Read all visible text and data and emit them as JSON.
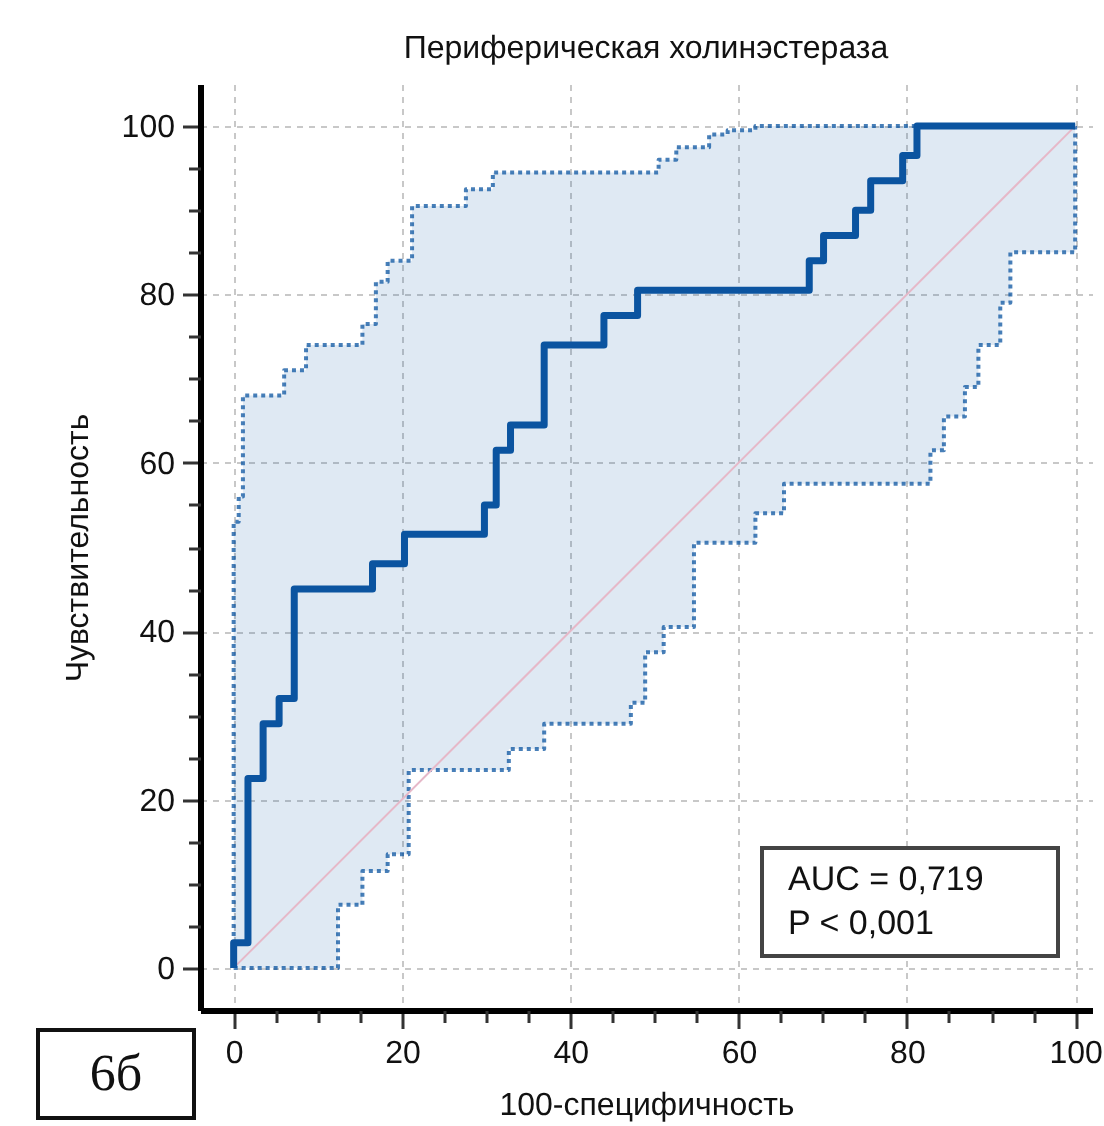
{
  "chart_data": {
    "type": "line",
    "title": "Периферическая холинэстераза",
    "xlabel": "100-специфичность",
    "ylabel": "Чувствительность",
    "xlim": [
      -4,
      102
    ],
    "ylim": [
      -5,
      105
    ],
    "xticks": [
      0,
      {
        "value": 5,
        "label": null
      },
      {
        "value": 10,
        "label": null
      },
      {
        "value": 15,
        "label": null
      },
      20,
      {
        "value": 25,
        "label": null
      },
      {
        "value": 30,
        "label": null
      },
      {
        "value": 35,
        "label": null
      },
      40,
      {
        "value": 45,
        "label": null
      },
      {
        "value": 50,
        "label": null
      },
      {
        "value": 55,
        "label": null
      },
      60,
      {
        "value": 65,
        "label": null
      },
      {
        "value": 70,
        "label": null
      },
      {
        "value": 75,
        "label": null
      },
      80,
      {
        "value": 85,
        "label": null
      },
      {
        "value": 90,
        "label": null
      },
      {
        "value": 95,
        "label": null
      },
      100
    ],
    "yticks": [
      0,
      {
        "value": 5,
        "label": null
      },
      {
        "value": 10,
        "label": null
      },
      {
        "value": 15,
        "label": null
      },
      20,
      {
        "value": 25,
        "label": null
      },
      {
        "value": 30,
        "label": null
      },
      {
        "value": 35,
        "label": null
      },
      40,
      {
        "value": 45,
        "label": null
      },
      {
        "value": 50,
        "label": null
      },
      {
        "value": 55,
        "label": null
      },
      60,
      {
        "value": 65,
        "label": null
      },
      {
        "value": 70,
        "label": null
      },
      {
        "value": 75,
        "label": null
      },
      80,
      {
        "value": 85,
        "label": null
      },
      {
        "value": 90,
        "label": null
      },
      {
        "value": 95,
        "label": null
      },
      100
    ],
    "grid": true,
    "series": [
      {
        "color": "#e6b8c8",
        "x": [
          0,
          100
        ],
        "values": [
          0,
          100
        ]
      },
      {
        "type": "step",
        "color": "#0b54a0",
        "x": [
          0,
          0,
          0.6,
          1.1,
          1.7,
          3.5,
          5.4,
          6,
          7.2,
          8.6,
          12.4,
          15.3,
          16.5,
          16.9,
          18.3,
          20.3,
          20.8,
          21.2,
          27.6,
          29.8,
          30.8,
          31.2,
          32.7,
          32.9,
          36.9,
          44,
          47.2,
          48,
          48.9,
          50.5,
          51.1,
          52.6,
          54.7,
          56.5,
          58.7,
          62,
          65.4,
          68.4,
          70.1,
          73.9,
          75.7,
          79.5,
          81.2,
          82.8,
          84.4,
          86.9,
          88.5,
          91.1,
          92.3,
          100
        ],
        "values": [
          0,
          3,
          3,
          3,
          22.5,
          29,
          32,
          32,
          45,
          45,
          45,
          45,
          48,
          48,
          48,
          51.5,
          51.5,
          51.5,
          51.5,
          55,
          55,
          61.5,
          61.5,
          64.5,
          74,
          77.5,
          77.5,
          80.5,
          80.5,
          80.5,
          80.5,
          80.5,
          80.5,
          80.5,
          80.5,
          80.5,
          80.5,
          84,
          87,
          90,
          93.5,
          96.5,
          100,
          100,
          100,
          100,
          100,
          100,
          100,
          100
        ],
        "lower": [
          0,
          0,
          0,
          0,
          0,
          0,
          0,
          0,
          0,
          0,
          7.5,
          11.5,
          11.5,
          11.5,
          13.5,
          13.5,
          23.5,
          23.5,
          23.5,
          23.5,
          23.5,
          23.5,
          26,
          26,
          29,
          29,
          31.5,
          31.5,
          37.5,
          37.5,
          40.5,
          40.5,
          50.5,
          50.5,
          50.5,
          54,
          57.5,
          57.5,
          57.5,
          57.5,
          57.5,
          57.5,
          57.5,
          61.5,
          65.5,
          69,
          74,
          79,
          85,
          100
        ],
        "upper": [
          0,
          53,
          56,
          68,
          68,
          68,
          68,
          71,
          71,
          74,
          74,
          76.5,
          76.5,
          81.5,
          84,
          84,
          84,
          90.5,
          92.5,
          92.5,
          94.5,
          94.5,
          94.5,
          94.5,
          94.5,
          94.5,
          94.5,
          94.5,
          94.5,
          96,
          96,
          97.5,
          97.5,
          99,
          99.5,
          100,
          100,
          100,
          100,
          100,
          100,
          100,
          100,
          100,
          100,
          100,
          100,
          100,
          100,
          100
        ]
      }
    ],
    "annotations": [
      "AUC = 0,719",
      "P < 0,001",
      "6б"
    ]
  }
}
